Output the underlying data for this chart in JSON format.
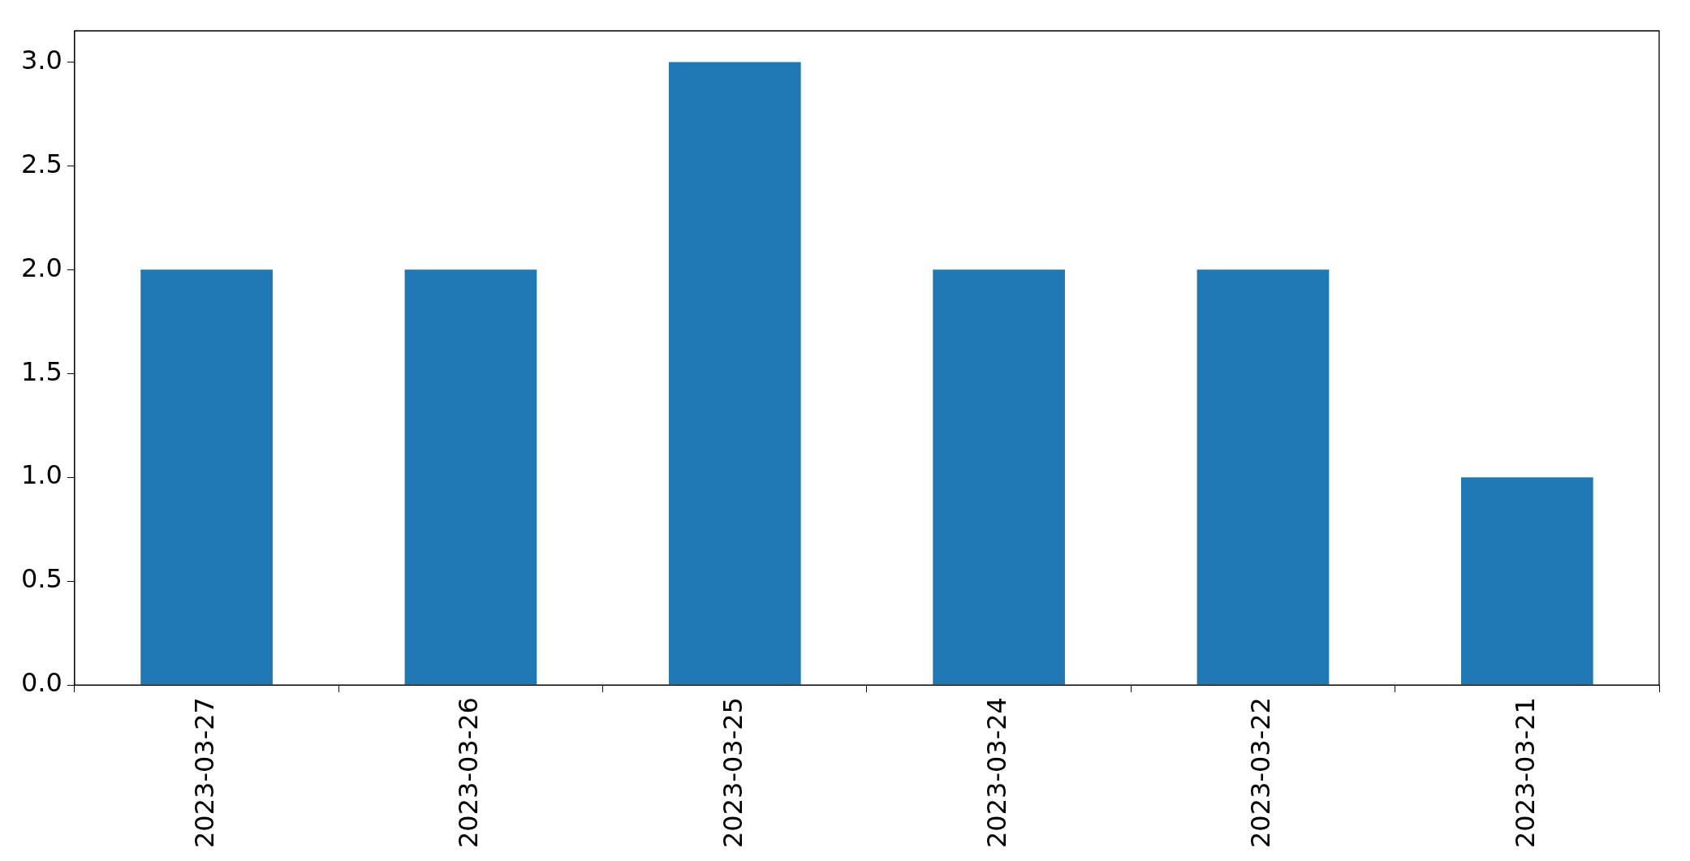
{
  "chart_data": {
    "type": "bar",
    "categories": [
      "2023-03-27",
      "2023-03-26",
      "2023-03-25",
      "2023-03-24",
      "2023-03-22",
      "2023-03-21"
    ],
    "values": [
      2,
      2,
      3,
      2,
      2,
      1
    ],
    "color": "#1f77b4",
    "ylim": [
      0,
      3.15
    ],
    "yticks": [
      {
        "value": 0,
        "label": "0.0"
      },
      {
        "value": 0.5,
        "label": "0.5"
      },
      {
        "value": 1,
        "label": "1.0"
      },
      {
        "value": 1.5,
        "label": "1.5"
      },
      {
        "value": 2,
        "label": "2.0"
      },
      {
        "value": 2.5,
        "label": "2.5"
      },
      {
        "value": 3,
        "label": "3.0"
      }
    ],
    "grid": false,
    "legend": false
  }
}
